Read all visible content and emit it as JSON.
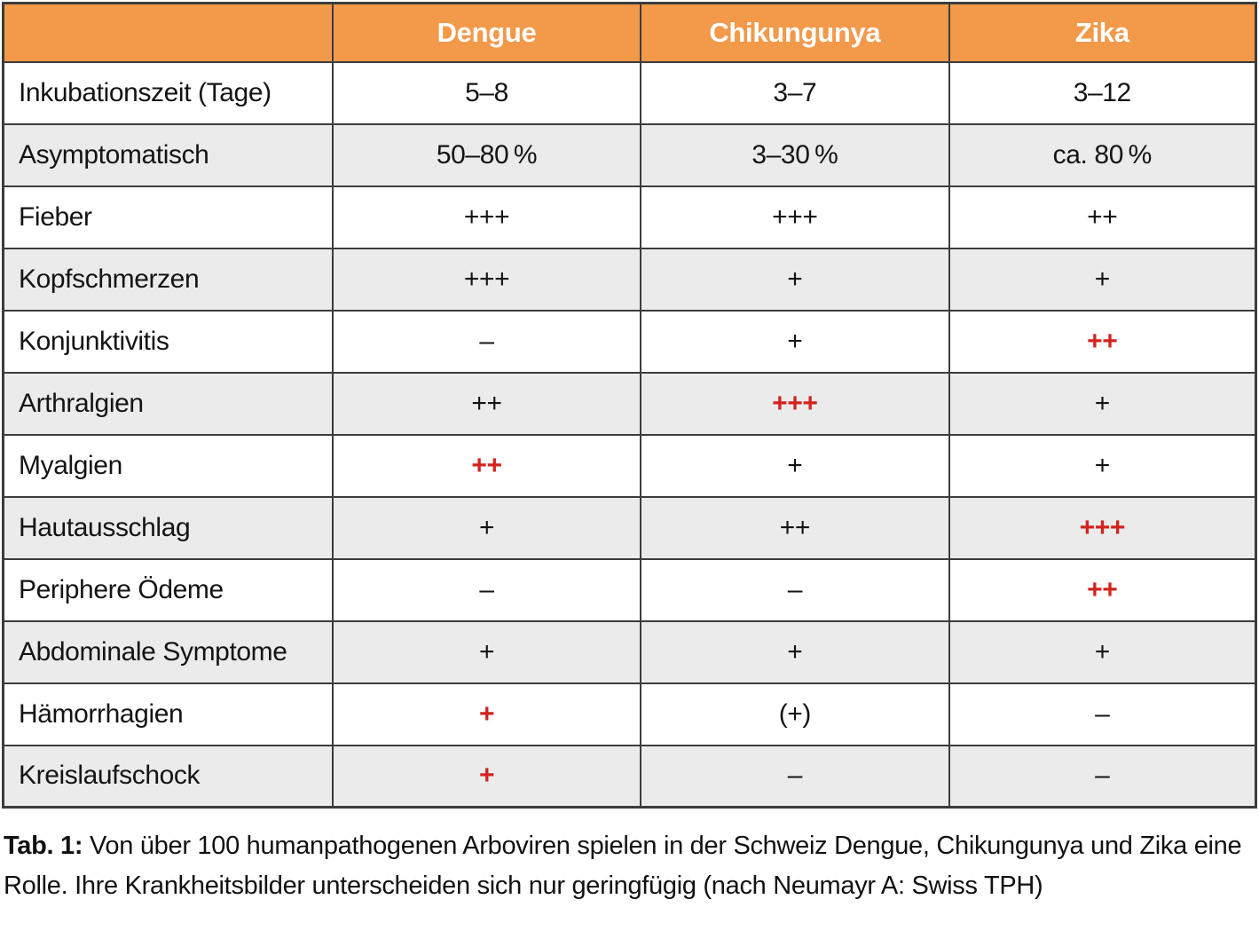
{
  "table": {
    "columns": [
      "",
      "Dengue",
      "Chikungunya",
      "Zika"
    ],
    "rows": [
      {
        "label": "Inkubationszeit (Tage)",
        "cells": [
          {
            "text": "5–8",
            "red": false
          },
          {
            "text": "3–7",
            "red": false
          },
          {
            "text": "3–12",
            "red": false
          }
        ]
      },
      {
        "label": "Asymptomatisch",
        "cells": [
          {
            "text": "50–80 %",
            "red": false
          },
          {
            "text": "3–30 %",
            "red": false
          },
          {
            "text": "ca. 80 %",
            "red": false
          }
        ]
      },
      {
        "label": "Fieber",
        "cells": [
          {
            "text": "+++",
            "red": false
          },
          {
            "text": "+++",
            "red": false
          },
          {
            "text": "++",
            "red": false
          }
        ]
      },
      {
        "label": "Kopfschmerzen",
        "cells": [
          {
            "text": "+++",
            "red": false
          },
          {
            "text": "+",
            "red": false
          },
          {
            "text": "+",
            "red": false
          }
        ]
      },
      {
        "label": "Konjunktivitis",
        "cells": [
          {
            "text": "–",
            "red": false
          },
          {
            "text": "+",
            "red": false
          },
          {
            "text": "++",
            "red": true
          }
        ]
      },
      {
        "label": "Arthralgien",
        "cells": [
          {
            "text": "++",
            "red": false
          },
          {
            "text": "+++",
            "red": true
          },
          {
            "text": "+",
            "red": false
          }
        ]
      },
      {
        "label": "Myalgien",
        "cells": [
          {
            "text": "++",
            "red": true
          },
          {
            "text": "+",
            "red": false
          },
          {
            "text": "+",
            "red": false
          }
        ]
      },
      {
        "label": "Hautausschlag",
        "cells": [
          {
            "text": "+",
            "red": false
          },
          {
            "text": "++",
            "red": false
          },
          {
            "text": "+++",
            "red": true
          }
        ]
      },
      {
        "label": "Periphere Ödeme",
        "cells": [
          {
            "text": "–",
            "red": false
          },
          {
            "text": "–",
            "red": false
          },
          {
            "text": "++",
            "red": true
          }
        ]
      },
      {
        "label": "Abdominale Symptome",
        "cells": [
          {
            "text": "+",
            "red": false
          },
          {
            "text": "+",
            "red": false
          },
          {
            "text": "+",
            "red": false
          }
        ]
      },
      {
        "label": "Hämorrhagien",
        "cells": [
          {
            "text": "+",
            "red": true
          },
          {
            "text": "(+)",
            "red": false
          },
          {
            "text": "–",
            "red": false
          }
        ]
      },
      {
        "label": "Kreislaufschock",
        "cells": [
          {
            "text": "+",
            "red": true
          },
          {
            "text": "–",
            "red": false
          },
          {
            "text": "–",
            "red": false
          }
        ]
      }
    ]
  },
  "caption": {
    "label": "Tab. 1:",
    "text": " Von über 100 humanpathogenen Arboviren spielen in der Schweiz Dengue, Chikungunya und Zika eine Rolle. Ihre Krankheitsbilder unterscheiden sich nur geringfügig (nach Neumayr A: Swiss TPH)"
  },
  "colors": {
    "header-bg": "#F2994A",
    "header-text": "#FFFFFF",
    "row-bg": "#FFFFFF",
    "row-alt-bg": "#EBEBEB",
    "border": "#3C3C3C",
    "text": "#141414",
    "red": "#D2231E"
  }
}
